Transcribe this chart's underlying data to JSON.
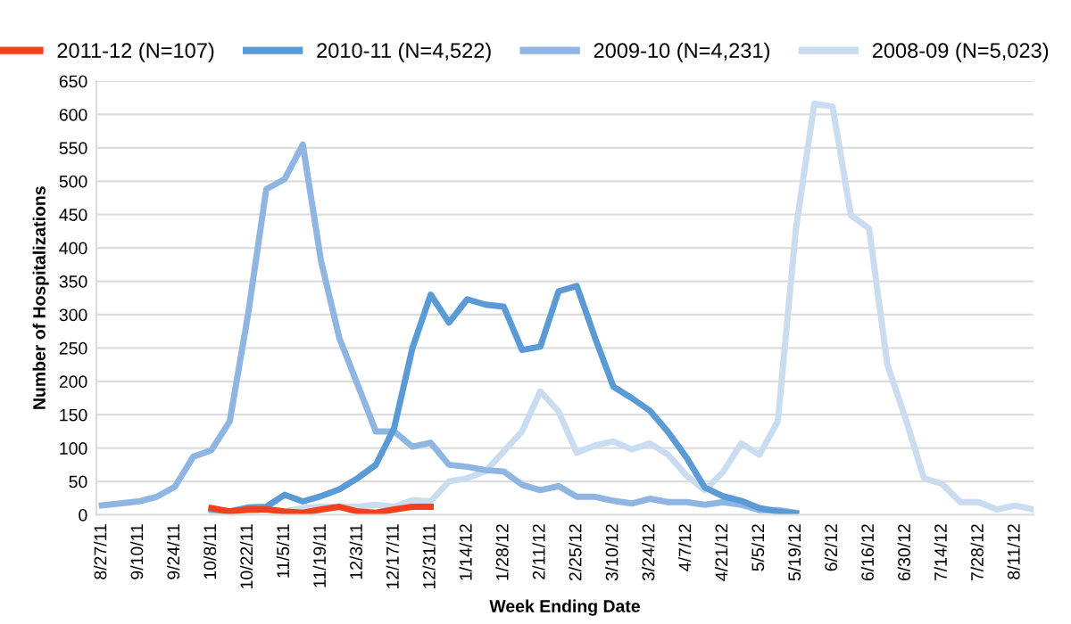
{
  "chart_data": {
    "type": "line",
    "xlabel": "Week Ending Date",
    "ylabel": "Number of Hospitalizations",
    "categories": [
      "8/27/11",
      null,
      "9/10/11",
      null,
      "9/24/11",
      null,
      "10/8/11",
      null,
      "10/22/11",
      null,
      "11/5/11",
      null,
      "11/19/11",
      null,
      "12/3/11",
      null,
      "12/17/11",
      null,
      "12/31/11",
      null,
      "1/14/12",
      null,
      "1/28/12",
      null,
      "2/11/12",
      null,
      "2/25/12",
      null,
      "3/10/12",
      null,
      "3/24/12",
      null,
      "4/7/12",
      null,
      "4/21/12",
      null,
      "5/5/12",
      null,
      "5/19/12",
      null,
      "6/2/12",
      null,
      "6/16/12",
      null,
      "6/30/12",
      null,
      "7/14/12",
      null,
      "7/28/12",
      null,
      "8/11/12",
      null
    ],
    "series": [
      {
        "name": "2011-12 (N=107)",
        "color": "#f2401c",
        "values": [
          null,
          null,
          null,
          null,
          null,
          null,
          10,
          5,
          8,
          8,
          5,
          3,
          8,
          12,
          5,
          3,
          8,
          12,
          12,
          null,
          null,
          null,
          null,
          null,
          null,
          null,
          null,
          null,
          null,
          null,
          null,
          null,
          null,
          null,
          null,
          null,
          null,
          null,
          null,
          null,
          null,
          null,
          null,
          null,
          null,
          null,
          null,
          null,
          null,
          null,
          null,
          null
        ]
      },
      {
        "name": "2010-11 (N=4,522)",
        "color": "#5b9bd5",
        "values": [
          null,
          null,
          null,
          null,
          null,
          null,
          8,
          5,
          11,
          12,
          30,
          20,
          28,
          38,
          55,
          75,
          130,
          250,
          330,
          288,
          323,
          315,
          312,
          247,
          252,
          335,
          343,
          265,
          192,
          175,
          156,
          124,
          86,
          41,
          28,
          21,
          10,
          5,
          2,
          null,
          null,
          null,
          null,
          null,
          null,
          null,
          null,
          null,
          null,
          null,
          null,
          null
        ]
      },
      {
        "name": "2009-10 (N=4,231)",
        "color": "#8fb6e3",
        "values": [
          14,
          17,
          20,
          27,
          42,
          87,
          97,
          140,
          300,
          488,
          503,
          555,
          380,
          265,
          195,
          125,
          125,
          102,
          108,
          75,
          72,
          67,
          65,
          45,
          37,
          43,
          27,
          27,
          21,
          17,
          24,
          19,
          19,
          15,
          19,
          15,
          7,
          7,
          3,
          null,
          null,
          null,
          null,
          null,
          null,
          null,
          null,
          null,
          null,
          null,
          null,
          null
        ]
      },
      {
        "name": "2008-09 (N=5,023)",
        "color": "#c9dcf0",
        "values": [
          null,
          null,
          null,
          null,
          null,
          null,
          2,
          0,
          3,
          10,
          5,
          10,
          12,
          12,
          12,
          15,
          12,
          22,
          20,
          50,
          55,
          65,
          95,
          125,
          185,
          155,
          93,
          104,
          110,
          98,
          107,
          90,
          59,
          37,
          64,
          107,
          90,
          140,
          430,
          616,
          612,
          449,
          429,
          225,
          144,
          55,
          46,
          19,
          19,
          8,
          14,
          8
        ]
      }
    ],
    "ylim": [
      0,
      650
    ],
    "yticks": [
      0,
      50,
      100,
      150,
      200,
      250,
      300,
      350,
      400,
      450,
      500,
      550,
      600,
      650
    ],
    "grid": "y",
    "legend": "top",
    "line_style": "solid",
    "marker": "none"
  }
}
